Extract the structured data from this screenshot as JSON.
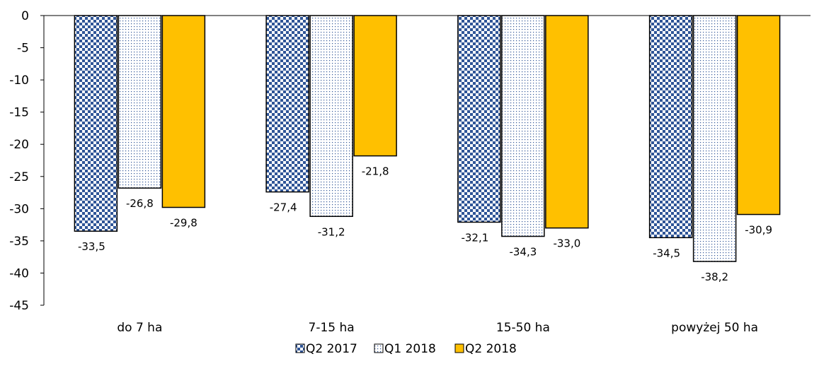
{
  "chart_data": {
    "type": "bar",
    "categories": [
      "do 7 ha",
      "7-15 ha",
      "15-50 ha",
      "powyżej 50 ha"
    ],
    "series": [
      {
        "name": "Q2 2017",
        "values": [
          -33.5,
          -27.4,
          -32.1,
          -34.5
        ],
        "labels": [
          "-33,5",
          "-27,4",
          "-32,1",
          "-34,5"
        ],
        "pattern": "checker",
        "color": "#2F5597"
      },
      {
        "name": "Q1 2018",
        "values": [
          -26.8,
          -31.2,
          -34.3,
          -38.2
        ],
        "labels": [
          "-26,8",
          "-31,2",
          "-34,3",
          "-38,2"
        ],
        "pattern": "dots",
        "color": "#2F5597"
      },
      {
        "name": "Q2 2018",
        "values": [
          -29.8,
          -21.8,
          -33.0,
          -30.9
        ],
        "labels": [
          "-29,8",
          "-21,8",
          "-33,0",
          "-30,9"
        ],
        "pattern": "solid",
        "color": "#FFC000"
      }
    ],
    "ylim": [
      -45,
      0
    ],
    "yticks": [
      0,
      -5,
      -10,
      -15,
      -20,
      -25,
      -30,
      -35,
      -40,
      -45
    ],
    "ytick_labels": [
      "0",
      "-5",
      "-10",
      "-15",
      "-20",
      "-25",
      "-30",
      "-35",
      "-40",
      "-45"
    ],
    "grid": false,
    "legend": "bottom-center",
    "title": "",
    "xlabel": "",
    "ylabel": ""
  }
}
